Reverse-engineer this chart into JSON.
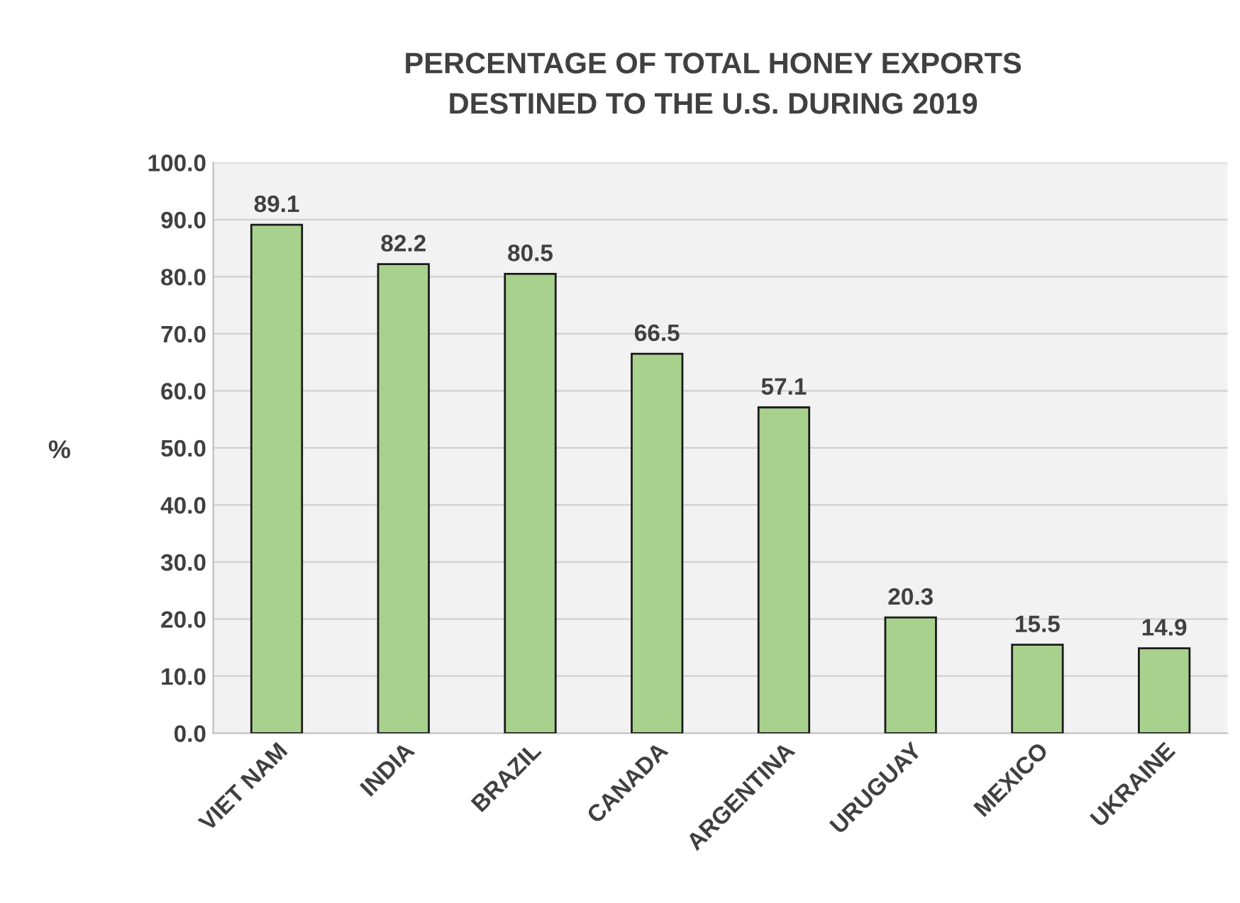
{
  "chart_data": {
    "type": "bar",
    "title": "PERCENTAGE OF TOTAL HONEY EXPORTS\nDESTINED TO THE U.S. DURING 2019",
    "ylabel": "%",
    "categories": [
      "VIET NAM",
      "INDIA",
      "BRAZIL",
      "CANADA",
      "ARGENTINA",
      "URUGUAY",
      "MEXICO",
      "UKRAINE"
    ],
    "values": [
      89.1,
      82.2,
      80.5,
      66.5,
      57.1,
      20.3,
      15.5,
      14.9
    ],
    "color": "#a9d18e",
    "ylim": [
      0,
      100
    ],
    "yticks": [
      {
        "value": 0,
        "label": "0.0"
      },
      {
        "value": 10,
        "label": "10.0"
      },
      {
        "value": 20,
        "label": "20.0"
      },
      {
        "value": 30,
        "label": "30.0"
      },
      {
        "value": 40,
        "label": "40.0"
      },
      {
        "value": 50,
        "label": "50.0"
      },
      {
        "value": 60,
        "label": "60.0"
      },
      {
        "value": 70,
        "label": "70.0"
      },
      {
        "value": 80,
        "label": "80.0"
      },
      {
        "value": 90,
        "label": "90.0"
      },
      {
        "value": 100,
        "label": "100.0"
      }
    ],
    "grid": "y",
    "data_labels": true
  }
}
